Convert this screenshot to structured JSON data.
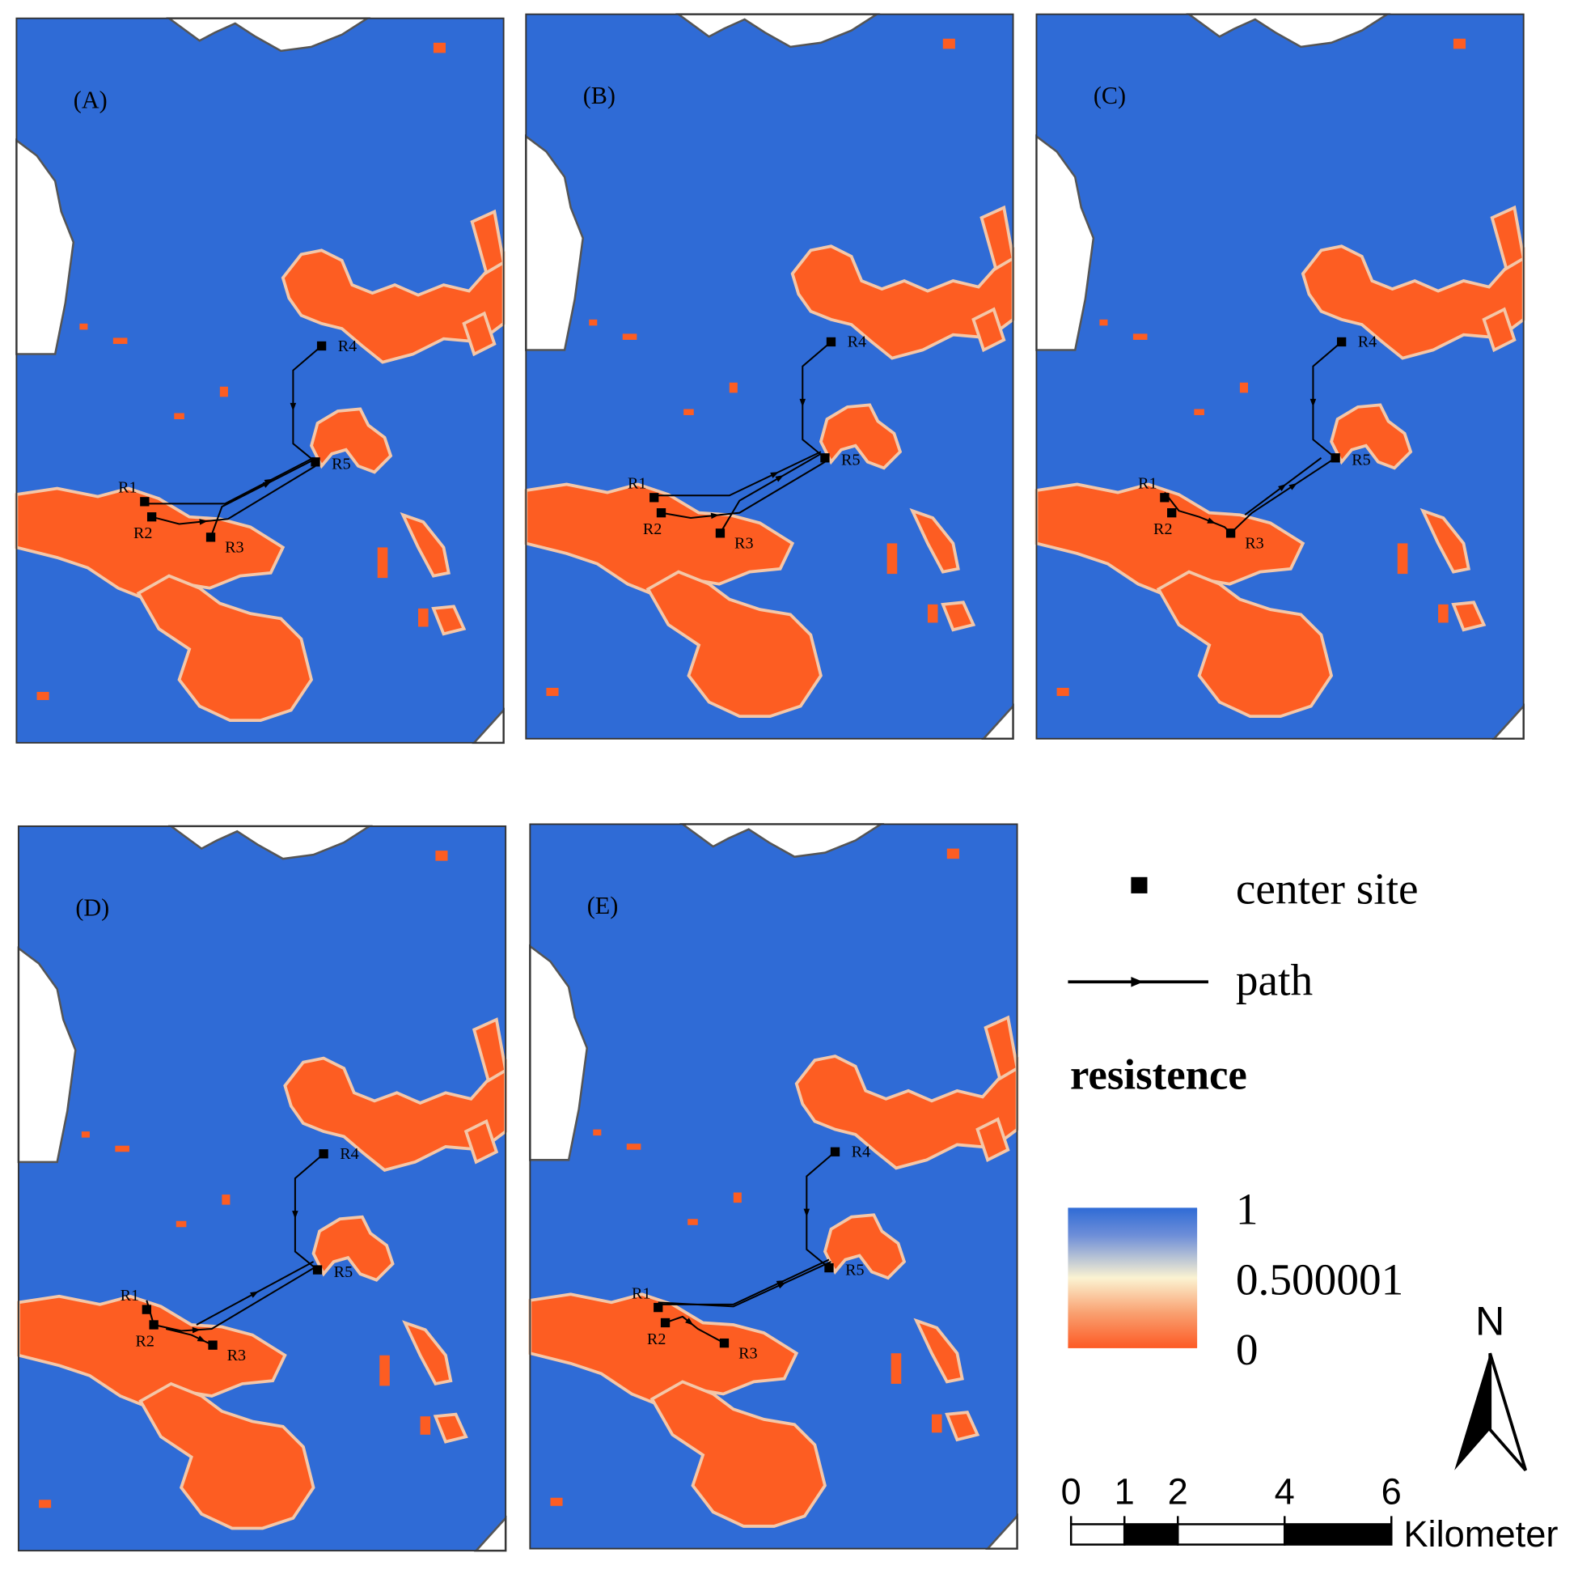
{
  "panels": [
    {
      "label": "(A)",
      "sites": [
        "R1",
        "R2",
        "R3",
        "R4",
        "R5"
      ]
    },
    {
      "label": "(B)",
      "sites": [
        "R1",
        "R2",
        "R3",
        "R4",
        "R5"
      ]
    },
    {
      "label": "(C)",
      "sites": [
        "R1",
        "R2",
        "R3",
        "R4",
        "R5"
      ]
    },
    {
      "label": "(D)",
      "sites": [
        "R1",
        "R2",
        "R3",
        "R4",
        "R5"
      ]
    },
    {
      "label": "(E)",
      "sites": [
        "R1",
        "R2",
        "R3",
        "R4",
        "R5"
      ]
    }
  ],
  "legend": {
    "center_site": "center site",
    "path": "path",
    "title": "resistence",
    "ticks": [
      1,
      0.500001,
      0
    ]
  },
  "scale_bar": {
    "ticks": [
      0,
      1,
      2,
      4,
      6
    ],
    "unit": "Kilometer"
  },
  "north": "N"
}
